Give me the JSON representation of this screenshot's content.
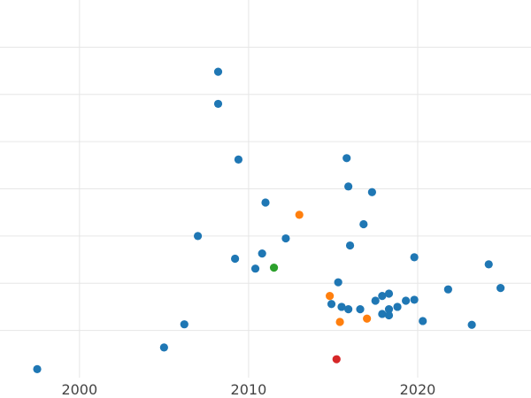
{
  "chart_data": {
    "type": "scatter",
    "title": "",
    "xlabel": "",
    "ylabel": "",
    "xlim": [
      1995.3,
      2026.7
    ],
    "ylim": [
      0,
      8
    ],
    "x_ticks": [
      2000,
      2010,
      2020
    ],
    "x_tick_labels": [
      "2000",
      "2010",
      "2020"
    ],
    "y_gridlines": [
      1,
      2,
      3,
      4,
      5,
      6,
      7
    ],
    "x_gridlines": [
      2000,
      2010,
      2020
    ],
    "y_tick_labels_visible": false,
    "grid": true,
    "legend": "none",
    "colors": {
      "blue": "#1f77b4",
      "orange": "#ff7f0e",
      "green": "#2ca02c",
      "red": "#d62728",
      "grid": "#e6e6e6",
      "tick_text": "#444444"
    },
    "points": [
      {
        "x": 1997.5,
        "y": 0.18,
        "color": "blue"
      },
      {
        "x": 2005.0,
        "y": 0.64,
        "color": "blue"
      },
      {
        "x": 2006.2,
        "y": 1.13,
        "color": "blue"
      },
      {
        "x": 2007.0,
        "y": 3.0,
        "color": "blue"
      },
      {
        "x": 2008.2,
        "y": 6.48,
        "color": "blue"
      },
      {
        "x": 2008.2,
        "y": 5.8,
        "color": "blue"
      },
      {
        "x": 2009.2,
        "y": 2.52,
        "color": "blue"
      },
      {
        "x": 2009.4,
        "y": 4.62,
        "color": "blue"
      },
      {
        "x": 2010.4,
        "y": 2.31,
        "color": "blue"
      },
      {
        "x": 2010.8,
        "y": 2.63,
        "color": "blue"
      },
      {
        "x": 2011.0,
        "y": 3.71,
        "color": "blue"
      },
      {
        "x": 2011.5,
        "y": 2.33,
        "color": "green"
      },
      {
        "x": 2012.2,
        "y": 2.95,
        "color": "blue"
      },
      {
        "x": 2013.0,
        "y": 3.45,
        "color": "orange"
      },
      {
        "x": 2014.8,
        "y": 1.73,
        "color": "orange"
      },
      {
        "x": 2014.9,
        "y": 1.56,
        "color": "blue"
      },
      {
        "x": 2015.2,
        "y": 0.39,
        "color": "red"
      },
      {
        "x": 2015.3,
        "y": 2.02,
        "color": "blue"
      },
      {
        "x": 2015.5,
        "y": 1.5,
        "color": "blue"
      },
      {
        "x": 2015.9,
        "y": 1.45,
        "color": "blue"
      },
      {
        "x": 2016.6,
        "y": 1.45,
        "color": "blue"
      },
      {
        "x": 2015.4,
        "y": 1.18,
        "color": "orange"
      },
      {
        "x": 2015.8,
        "y": 4.65,
        "color": "blue"
      },
      {
        "x": 2015.9,
        "y": 4.05,
        "color": "blue"
      },
      {
        "x": 2016.0,
        "y": 2.8,
        "color": "blue"
      },
      {
        "x": 2016.8,
        "y": 3.25,
        "color": "blue"
      },
      {
        "x": 2017.0,
        "y": 1.25,
        "color": "orange"
      },
      {
        "x": 2017.3,
        "y": 3.93,
        "color": "blue"
      },
      {
        "x": 2017.5,
        "y": 1.63,
        "color": "blue"
      },
      {
        "x": 2017.9,
        "y": 1.73,
        "color": "blue"
      },
      {
        "x": 2017.9,
        "y": 1.35,
        "color": "blue"
      },
      {
        "x": 2018.3,
        "y": 1.78,
        "color": "blue"
      },
      {
        "x": 2018.3,
        "y": 1.45,
        "color": "blue"
      },
      {
        "x": 2018.3,
        "y": 1.32,
        "color": "blue"
      },
      {
        "x": 2018.8,
        "y": 1.5,
        "color": "blue"
      },
      {
        "x": 2019.3,
        "y": 1.63,
        "color": "blue"
      },
      {
        "x": 2019.8,
        "y": 2.55,
        "color": "blue"
      },
      {
        "x": 2019.8,
        "y": 1.65,
        "color": "blue"
      },
      {
        "x": 2020.3,
        "y": 1.2,
        "color": "blue"
      },
      {
        "x": 2021.8,
        "y": 1.87,
        "color": "blue"
      },
      {
        "x": 2023.2,
        "y": 1.12,
        "color": "blue"
      },
      {
        "x": 2024.2,
        "y": 2.4,
        "color": "blue"
      },
      {
        "x": 2024.9,
        "y": 1.9,
        "color": "blue"
      }
    ]
  }
}
